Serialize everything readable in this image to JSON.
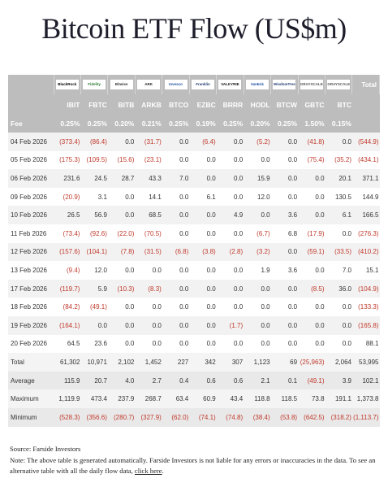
{
  "title": "Bitcoin ETF Flow (US$m)",
  "table": {
    "header": {
      "logos": [
        "BlackRock",
        "Fidelity",
        "Bitwise",
        "ARK",
        "Invesco",
        "Franklin",
        "VALKYRIE",
        "VanEck",
        "WisdomTree",
        "GRAYSCALE",
        "GRAYSCALE"
      ],
      "total": "Total",
      "tickers": [
        "IBIT",
        "FBTC",
        "BITB",
        "ARKB",
        "BTCO",
        "EZBC",
        "BRRR",
        "HODL",
        "BTCW",
        "GBTC",
        "BTC"
      ]
    },
    "fee": {
      "label": "Fee",
      "values": [
        "0.25%",
        "0.25%",
        "0.20%",
        "0.21%",
        "0.25%",
        "0.19%",
        "0.25%",
        "0.20%",
        "0.25%",
        "1.50%",
        "0.15%"
      ]
    },
    "rows": [
      [
        "04 Feb 2026",
        "(373.4)",
        "(86.4)",
        "0.0",
        "(31.7)",
        "0.0",
        "(6.4)",
        "0.0",
        "(5.2)",
        "0.0",
        "(41.8)",
        "0.0",
        "(544.9)"
      ],
      [
        "05 Feb 2026",
        "(175.3)",
        "(109.5)",
        "(15.6)",
        "(23.1)",
        "0.0",
        "0.0",
        "0.0",
        "0.0",
        "0.0",
        "(75.4)",
        "(35.2)",
        "(434.1)"
      ],
      [
        "06 Feb 2026",
        "231.6",
        "24.5",
        "28.7",
        "43.3",
        "7.0",
        "0.0",
        "0.0",
        "15.9",
        "0.0",
        "0.0",
        "20.1",
        "371.1"
      ],
      [
        "09 Feb 2026",
        "(20.9)",
        "3.1",
        "0.0",
        "14.1",
        "0.0",
        "6.1",
        "0.0",
        "12.0",
        "0.0",
        "0.0",
        "130.5",
        "144.9"
      ],
      [
        "10 Feb 2026",
        "26.5",
        "56.9",
        "0.0",
        "68.5",
        "0.0",
        "0.0",
        "4.9",
        "0.0",
        "3.6",
        "0.0",
        "6.1",
        "166.5"
      ],
      [
        "11 Feb 2026",
        "(73.4)",
        "(92.6)",
        "(22.0)",
        "(70.5)",
        "0.0",
        "0.0",
        "0.0",
        "(6.7)",
        "6.8",
        "(17.9)",
        "0.0",
        "(276.3)"
      ],
      [
        "12 Feb 2026",
        "(157.6)",
        "(104.1)",
        "(7.8)",
        "(31.5)",
        "(6.8)",
        "(3.8)",
        "(2.8)",
        "(3.2)",
        "0.0",
        "(59.1)",
        "(33.5)",
        "(410.2)"
      ],
      [
        "13 Feb 2026",
        "(9.4)",
        "12.0",
        "0.0",
        "0.0",
        "0.0",
        "0.0",
        "0.0",
        "1.9",
        "3.6",
        "0.0",
        "7.0",
        "15.1"
      ],
      [
        "17 Feb 2026",
        "(119.7)",
        "5.9",
        "(10.3)",
        "(8.3)",
        "0.0",
        "0.0",
        "0.0",
        "0.0",
        "0.0",
        "(8.5)",
        "36.0",
        "(104.9)"
      ],
      [
        "18 Feb 2026",
        "(84.2)",
        "(49.1)",
        "0.0",
        "0.0",
        "0.0",
        "0.0",
        "0.0",
        "0.0",
        "0.0",
        "0.0",
        "0.0",
        "(133.3)"
      ],
      [
        "19 Feb 2026",
        "(164.1)",
        "0.0",
        "0.0",
        "0.0",
        "0.0",
        "0.0",
        "(1.7)",
        "0.0",
        "0.0",
        "0.0",
        "0.0",
        "(165.8)"
      ],
      [
        "20 Feb 2026",
        "64.5",
        "23.6",
        "0.0",
        "0.0",
        "0.0",
        "0.0",
        "0.0",
        "0.0",
        "0.0",
        "0.0",
        "0.0",
        "88.1"
      ]
    ],
    "summary": [
      [
        "Total",
        "61,302",
        "10,971",
        "2,102",
        "1,452",
        "227",
        "342",
        "307",
        "1,123",
        "69",
        "(25,963)",
        "2,064",
        "53,995"
      ],
      [
        "Average",
        "115.9",
        "20.7",
        "4.0",
        "2.7",
        "0.4",
        "0.6",
        "0.6",
        "2.1",
        "0.1",
        "(49.1)",
        "3.9",
        "102.1"
      ],
      [
        "Maximum",
        "1,119.9",
        "473.4",
        "237.9",
        "268.7",
        "63.4",
        "60.9",
        "43.4",
        "118.8",
        "118.5",
        "73.8",
        "191.1",
        "1,373.8"
      ],
      [
        "Minimum",
        "(528.3)",
        "(356.6)",
        "(280.7)",
        "(327.9)",
        "(62.0)",
        "(74.1)",
        "(74.8)",
        "(38.4)",
        "(53.8)",
        "(642.5)",
        "(318.2)",
        "(1,113.7)"
      ]
    ]
  },
  "footer": {
    "source": "Source: Farside Investors",
    "note": "Note: The above table is generated automatically. Farside Investors is not liable for any errors or inaccuracies in the data. To see an alternative table with all the daily flow data, ",
    "link": "click here",
    "end": "."
  }
}
